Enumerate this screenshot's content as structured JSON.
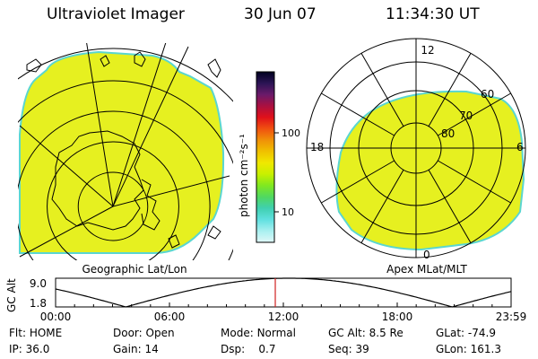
{
  "header": {
    "instrument": "Ultraviolet Imager",
    "date": "30 Jun 07",
    "time": "11:34:30 UT"
  },
  "colors": {
    "fill": "#e6f020",
    "fill_rim": "#5ad6d0",
    "grid": "#000000",
    "marker": "#d02020"
  },
  "colorbar": {
    "unit_label": "photon cm⁻²s⁻¹",
    "ticks": [
      "100",
      "10"
    ],
    "stops": [
      "#000020",
      "#2b1454",
      "#6a1a6a",
      "#aa1040",
      "#e0101a",
      "#f05010",
      "#f09008",
      "#f0c000",
      "#f0e800",
      "#c8f000",
      "#80e820",
      "#50d860",
      "#40d0b0",
      "#60e0e0",
      "#a8f0f0",
      "#e0f8f8"
    ]
  },
  "left_panel": {
    "caption": "Geographic Lat/Lon"
  },
  "right_panel": {
    "caption": "Apex MLat/MLT",
    "mlt_labels": {
      "top": "12",
      "left": "18",
      "right": "6",
      "bottom": "0"
    },
    "lat_labels": [
      "60",
      "70",
      "80"
    ]
  },
  "altitude_plot": {
    "ylabel": "GC Alt",
    "yticks": [
      "9.0",
      "1.8"
    ],
    "xticks": [
      "00:00",
      "06:00",
      "12:00",
      "18:00",
      "23:59"
    ],
    "marker_time": "11:34:30"
  },
  "status": {
    "flt_label": "Flt:",
    "flt": "HOME",
    "door_label": "Door:",
    "door": "Open",
    "mode_label": "Mode:",
    "mode": "Normal",
    "gcalt_label": "GC Alt:",
    "gcalt": "8.5 Re",
    "glat_label": "GLat:",
    "glat": "-74.9",
    "ip_label": "IP:",
    "ip": "36.0",
    "gain_label": "Gain:",
    "gain": "14",
    "dsp_label": "Dsp:",
    "dsp": "0.7",
    "seq_label": "Seq:",
    "seq": "39",
    "glon_label": "GLon:",
    "glon": "161.3"
  },
  "chart_data": [
    {
      "type": "heatmap",
      "title": "Geographic Lat/Lon"
    },
    {
      "type": "heatmap",
      "title": "Apex MLat/MLT",
      "r_labels": [
        60,
        70,
        80
      ],
      "theta_labels": [
        "12",
        "18",
        "6",
        "0"
      ]
    },
    {
      "type": "line",
      "title": "",
      "xlabel": "",
      "ylabel": "GC Alt",
      "x": [
        "00:00",
        "06:00",
        "12:00",
        "18:00",
        "23:59"
      ],
      "ylim": [
        1.8,
        9.0
      ],
      "marker": "11:34:30"
    }
  ]
}
